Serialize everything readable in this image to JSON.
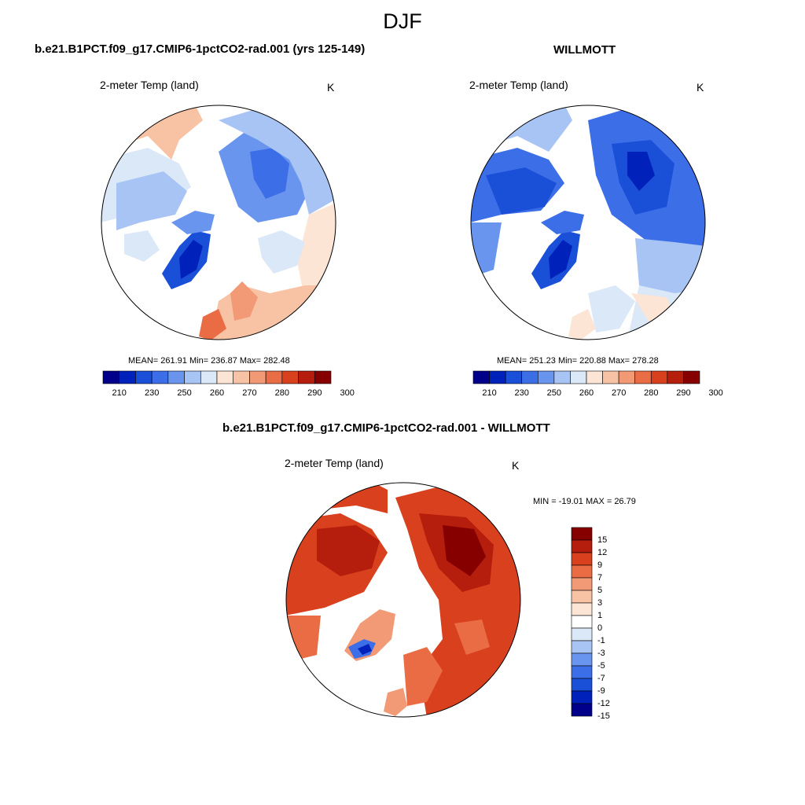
{
  "figure": {
    "title": "DJF",
    "panel_a": {
      "case": "b.e21.B1PCT.f09_g17.CMIP6-1pctCO2-rad.001 (yrs 125-149)",
      "variable": "2-meter Temp (land)",
      "units": "K",
      "stats": "MEAN= 261.91  Min= 236.87  Max= 282.48"
    },
    "panel_b": {
      "case": "WILLMOTT",
      "variable": "2-meter Temp (land)",
      "units": "K",
      "stats": "MEAN= 251.23  Min= 220.88  Max= 278.28"
    },
    "panel_c": {
      "case": "b.e21.B1PCT.f09_g17.CMIP6-1pctCO2-rad.001 - WILLMOTT",
      "variable": "2-meter Temp (land)",
      "units": "K",
      "stats": "MIN = -19.01 MAX =  26.79"
    }
  },
  "colorbar_abs": {
    "ticks": [
      "210",
      "230",
      "250",
      "260",
      "270",
      "280",
      "290",
      "300"
    ],
    "colors": [
      "#00008b",
      "#0022bb",
      "#1a4fd8",
      "#3c6ee8",
      "#6a95ef",
      "#a7c4f4",
      "#dbe8f8",
      "#fde5d6",
      "#f8c2a4",
      "#f29a75",
      "#ea6c45",
      "#d8401e",
      "#b51d0c",
      "#870000"
    ]
  },
  "colorbar_diff": {
    "ticks": [
      "15",
      "12",
      "9",
      "7",
      "5",
      "3",
      "1",
      "0",
      "-1",
      "-3",
      "-5",
      "-7",
      "-9",
      "-12",
      "-15"
    ],
    "colors": [
      "#870000",
      "#b51d0c",
      "#d8401e",
      "#ea6c45",
      "#f29a75",
      "#f8c2a4",
      "#fde5d6",
      "#ffffff",
      "#dbe8f8",
      "#a7c4f4",
      "#6a95ef",
      "#3c6ee8",
      "#1a4fd8",
      "#0022bb",
      "#00008b"
    ]
  }
}
